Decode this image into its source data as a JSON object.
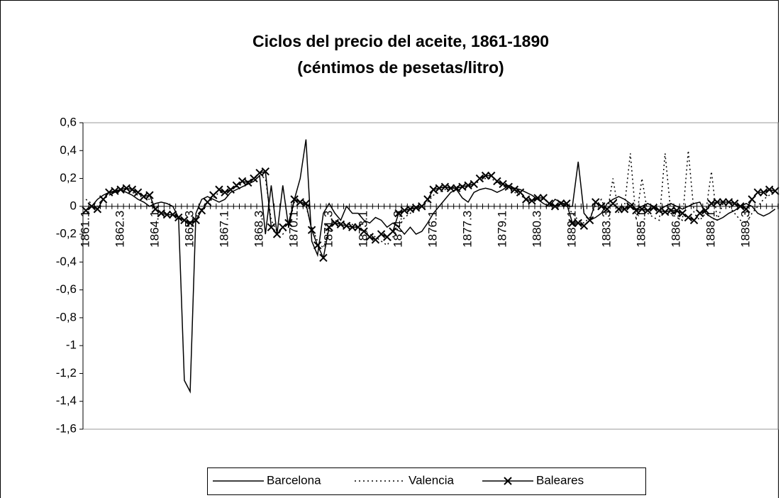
{
  "chart_data": {
    "type": "line",
    "title": "Ciclos del precio del aceite, 1861-1890",
    "subtitle": "(céntimos de pesetas/litro)",
    "categories": [
      "1861.1",
      null,
      null,
      null,
      null,
      null,
      "1862.3",
      null,
      null,
      null,
      null,
      null,
      "1864.1",
      null,
      null,
      null,
      null,
      null,
      "1865.3",
      null,
      null,
      null,
      null,
      null,
      "1867.1",
      null,
      null,
      null,
      null,
      null,
      "1868.3",
      null,
      null,
      null,
      null,
      null,
      "1870.1",
      null,
      null,
      null,
      null,
      null,
      "1871.3",
      null,
      null,
      null,
      null,
      null,
      "1873.1",
      null,
      null,
      null,
      null,
      null,
      "1874.3",
      null,
      null,
      null,
      null,
      null,
      "1876.1",
      null,
      null,
      null,
      null,
      null,
      "1877.3",
      null,
      null,
      null,
      null,
      null,
      "1879.1",
      null,
      null,
      null,
      null,
      null,
      "1880.3",
      null,
      null,
      null,
      null,
      null,
      "1882.1",
      null,
      null,
      null,
      null,
      null,
      "1883.3",
      null,
      null,
      null,
      null,
      null,
      "1885.1",
      null,
      null,
      null,
      null,
      null,
      "1886.3",
      null,
      null,
      null,
      null,
      null,
      "1888.1",
      null,
      null,
      null,
      null,
      null,
      "1889.3",
      null,
      null,
      null,
      null,
      null
    ],
    "ylim": [
      -1.6,
      0.6
    ],
    "yticks": [
      {
        "value": 0.6,
        "label": "0,6"
      },
      {
        "value": 0.4,
        "label": "0,4"
      },
      {
        "value": 0.2,
        "label": "0,2"
      },
      0,
      {
        "value": -0.2,
        "label": "-0,2"
      },
      {
        "value": -0.4,
        "label": "-0,4"
      },
      {
        "value": -0.6,
        "label": "-0,6"
      },
      {
        "value": -0.8,
        "label": "-0,8"
      },
      -1,
      {
        "value": -1.2,
        "label": "-1,2"
      },
      {
        "value": -1.4,
        "label": "-1,4"
      },
      {
        "value": -1.6,
        "label": "-1,6"
      }
    ],
    "grid": false,
    "legend": "bottom",
    "series": [
      {
        "name": "Barcelona",
        "color": "#000000",
        "dash": "none",
        "marker": "none",
        "values": [
          -0.03,
          0.0,
          0.05,
          0.08,
          0.1,
          0.1,
          0.12,
          0.1,
          0.08,
          0.05,
          0.03,
          0.0,
          0.02,
          0.03,
          0.02,
          0.0,
          -0.08,
          -1.25,
          -1.33,
          -0.05,
          0.05,
          0.07,
          0.05,
          0.03,
          0.05,
          0.1,
          0.12,
          0.14,
          0.16,
          0.18,
          0.22,
          -0.2,
          0.15,
          -0.2,
          0.15,
          -0.15,
          0.05,
          0.2,
          0.48,
          -0.25,
          -0.35,
          -0.05,
          0.02,
          -0.05,
          -0.1,
          0.0,
          -0.05,
          -0.05,
          -0.1,
          -0.12,
          -0.08,
          -0.1,
          -0.15,
          -0.12,
          -0.15,
          -0.2,
          -0.15,
          -0.2,
          -0.18,
          -0.12,
          -0.05,
          0.0,
          0.05,
          0.1,
          0.12,
          0.06,
          0.03,
          0.1,
          0.12,
          0.13,
          0.12,
          0.1,
          0.12,
          0.15,
          0.13,
          0.12,
          0.1,
          0.08,
          0.05,
          0.02,
          0.0,
          0.05,
          0.03,
          0.0,
          0.0,
          0.32,
          -0.05,
          -0.1,
          -0.08,
          -0.05,
          0.02,
          0.05,
          0.07,
          0.05,
          0.02,
          -0.02,
          0.0,
          0.02,
          0.0,
          -0.03,
          0.0,
          0.02,
          0.0,
          -0.02,
          0.0,
          0.02,
          0.03,
          -0.05,
          -0.08,
          -0.1,
          -0.08,
          -0.05,
          -0.03,
          0.0,
          0.02,
          0.0,
          -0.05,
          -0.07,
          -0.05,
          -0.02
        ]
      },
      {
        "name": "Valencia",
        "color": "#000000",
        "dash": "2,4",
        "marker": "none",
        "values": [
          0.05,
          0.02,
          0.0,
          0.05,
          0.08,
          0.1,
          0.12,
          0.12,
          0.1,
          0.08,
          0.06,
          0.05,
          -0.02,
          -0.04,
          -0.05,
          -0.06,
          -0.08,
          -0.1,
          -0.12,
          -0.08,
          -0.02,
          0.02,
          0.06,
          0.1,
          0.1,
          0.12,
          0.14,
          0.16,
          0.18,
          0.2,
          0.22,
          0.2,
          -0.1,
          -0.18,
          -0.2,
          -0.15,
          0.03,
          0.05,
          0.0,
          -0.15,
          -0.25,
          -0.3,
          -0.15,
          -0.1,
          -0.12,
          -0.12,
          -0.13,
          -0.15,
          -0.18,
          -0.2,
          -0.22,
          -0.25,
          -0.28,
          -0.22,
          -0.15,
          -0.08,
          -0.05,
          -0.02,
          0.0,
          0.03,
          0.08,
          0.1,
          0.12,
          0.13,
          0.14,
          0.15,
          0.14,
          0.16,
          0.18,
          0.2,
          0.2,
          0.17,
          0.15,
          0.12,
          0.1,
          0.08,
          0.05,
          0.04,
          0.05,
          0.05,
          0.03,
          0.0,
          0.02,
          0.0,
          -0.05,
          -0.1,
          -0.12,
          -0.08,
          0.0,
          0.05,
          -0.05,
          0.2,
          -0.05,
          0.0,
          0.38,
          -0.1,
          0.2,
          -0.05,
          -0.08,
          -0.1,
          0.38,
          -0.05,
          -0.08,
          -0.1,
          0.4,
          -0.05,
          -0.1,
          -0.05,
          0.25,
          -0.1,
          0.02,
          0.0,
          -0.05,
          -0.1,
          -0.12,
          -0.05,
          0.0,
          0.05,
          0.08,
          0.1
        ]
      },
      {
        "name": "Baleares",
        "color": "#000000",
        "dash": "none",
        "marker": "x",
        "values": [
          -0.03,
          0.0,
          -0.02,
          0.05,
          0.1,
          0.11,
          0.12,
          0.13,
          0.12,
          0.1,
          0.07,
          0.08,
          -0.02,
          -0.05,
          -0.06,
          -0.06,
          -0.08,
          -0.1,
          -0.12,
          -0.1,
          -0.03,
          0.03,
          0.08,
          0.12,
          0.1,
          0.12,
          0.15,
          0.18,
          0.17,
          0.2,
          0.24,
          0.25,
          -0.15,
          -0.2,
          -0.15,
          -0.12,
          0.05,
          0.03,
          0.02,
          -0.17,
          -0.28,
          -0.37,
          -0.15,
          -0.12,
          -0.13,
          -0.14,
          -0.15,
          -0.15,
          -0.18,
          -0.22,
          -0.24,
          -0.2,
          -0.22,
          -0.18,
          -0.05,
          -0.03,
          -0.02,
          -0.01,
          0.0,
          0.05,
          0.12,
          0.13,
          0.14,
          0.13,
          0.13,
          0.14,
          0.15,
          0.16,
          0.2,
          0.22,
          0.22,
          0.18,
          0.16,
          0.14,
          0.12,
          0.1,
          0.05,
          0.04,
          0.06,
          0.06,
          0.02,
          0.0,
          0.02,
          0.02,
          -0.12,
          -0.12,
          -0.14,
          -0.1,
          0.03,
          0.0,
          -0.02,
          0.02,
          -0.02,
          -0.02,
          0.0,
          -0.03,
          -0.02,
          -0.03,
          -0.01,
          -0.03,
          -0.04,
          -0.03,
          -0.03,
          -0.05,
          -0.08,
          -0.1,
          -0.05,
          -0.03,
          0.02,
          0.03,
          0.03,
          0.03,
          0.02,
          0.0,
          -0.02,
          0.05,
          0.1,
          0.1,
          0.12,
          0.11
        ]
      }
    ]
  }
}
